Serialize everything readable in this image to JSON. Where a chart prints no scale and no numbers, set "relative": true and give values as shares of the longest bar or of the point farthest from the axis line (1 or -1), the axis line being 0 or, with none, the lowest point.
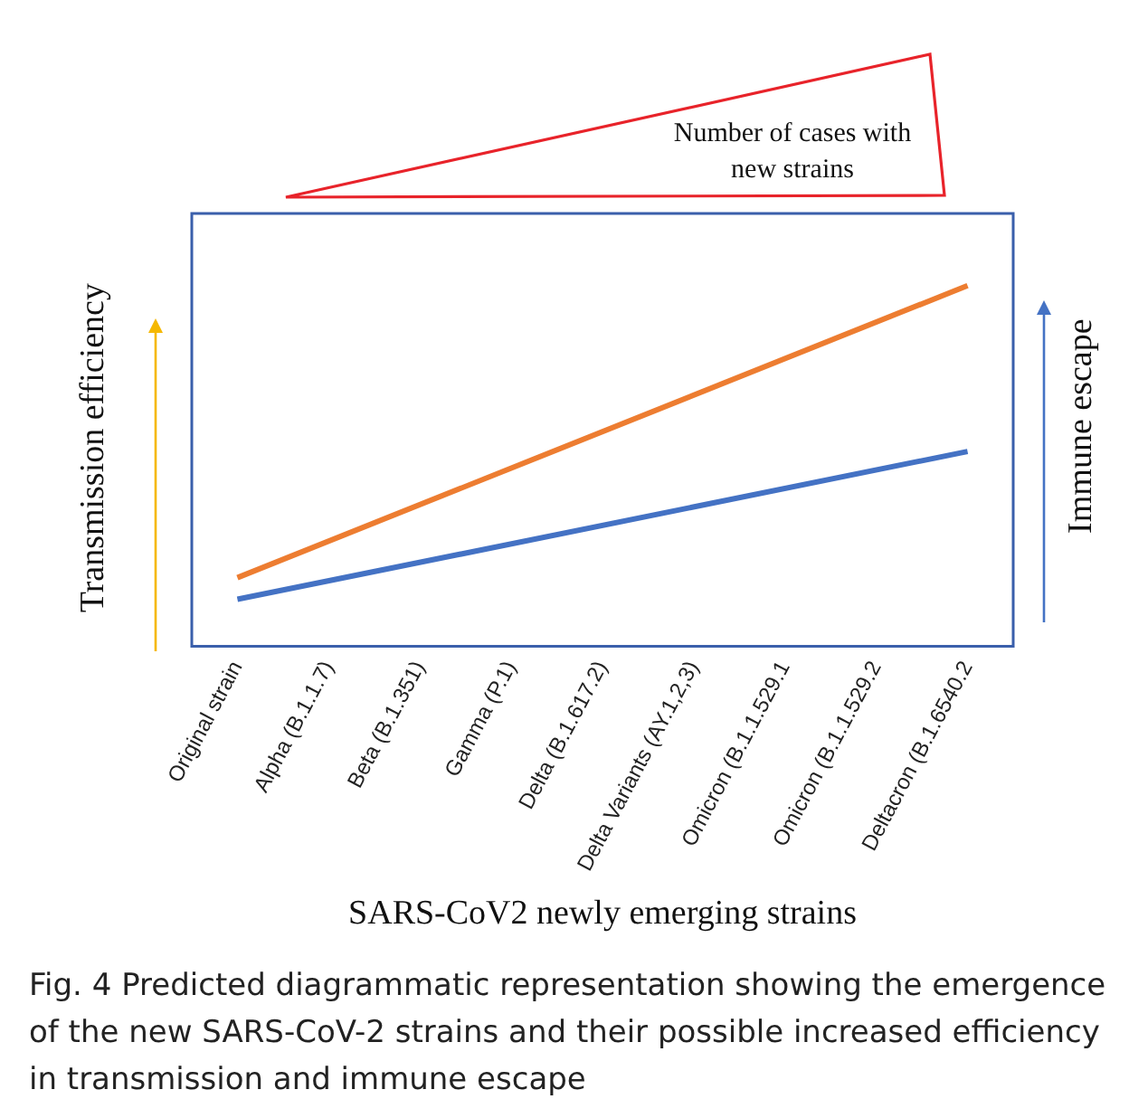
{
  "chart_data": {
    "type": "line",
    "xlabel": "SARS-CoV2 newly emerging strains",
    "ylabel": "Transmission efficiency",
    "y2label": "Immune escape",
    "categories": [
      "Original strain",
      "Alpha (B.1.1.7)",
      "Beta (B.1.351)",
      "Gamma (P.1)",
      "Delta (B.1.617.2)",
      "Delta Variants (AY.1,2,3)",
      "Omicron (B.1.1.529.1",
      "Omicron (B.1.1.529.2",
      "Deltacron (B.1.6540.2"
    ],
    "series": [
      {
        "color": "#ed7d31",
        "values": [
          0.19,
          null,
          null,
          null,
          null,
          null,
          null,
          null,
          1
        ]
      },
      {
        "color": "#4472c4",
        "values": [
          0.13,
          null,
          null,
          null,
          null,
          null,
          null,
          null,
          0.54
        ]
      }
    ],
    "relative": true,
    "legend": false,
    "grid": false,
    "marker": "none",
    "line_style": "solid",
    "annotations": [
      "Number of cases with new strains",
      "Fig. 4 Predicted diagrammatic representation showing the emergence of the new SARS-CoV-2 strains and their possible increased efficiency in transmission and immune escape"
    ]
  }
}
